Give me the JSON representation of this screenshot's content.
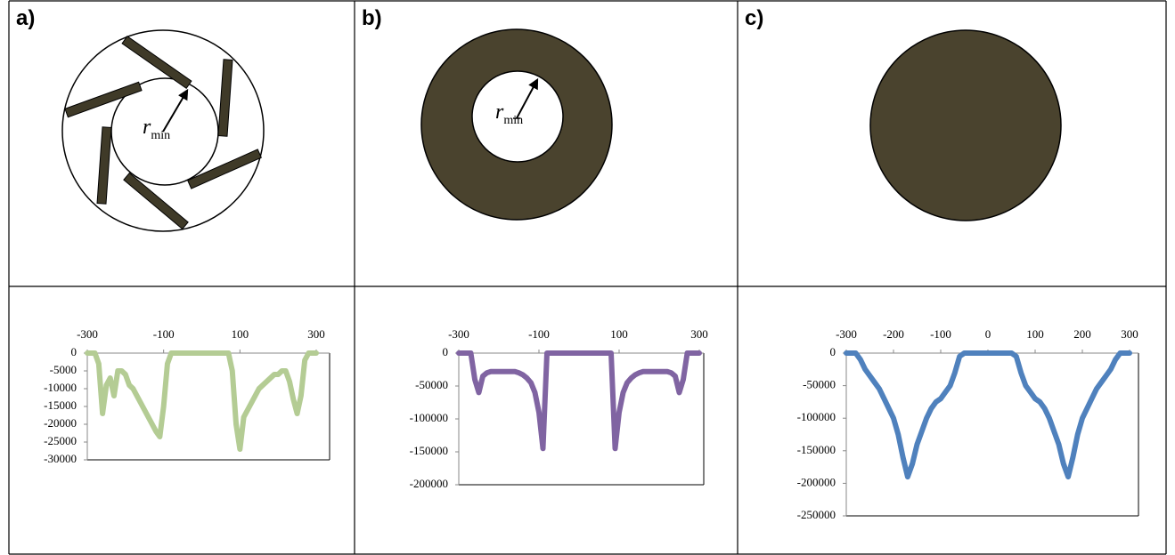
{
  "panels": [
    {
      "label": "a)",
      "annotation": {
        "symbol": "r",
        "subscript": "min"
      }
    },
    {
      "label": "b)",
      "annotation": {
        "symbol": "r",
        "subscript": "min"
      }
    },
    {
      "label": "c)"
    }
  ],
  "chart_data": [
    {
      "type": "line",
      "x": [
        -300,
        -290,
        -280,
        -270,
        -260,
        -250,
        -240,
        -230,
        -220,
        -210,
        -200,
        -190,
        -180,
        -170,
        -160,
        -150,
        -140,
        -130,
        -120,
        -110,
        -100,
        -90,
        -80,
        -70,
        -60,
        -50,
        -40,
        -30,
        -20,
        -10,
        0,
        10,
        20,
        30,
        40,
        50,
        60,
        70,
        80,
        90,
        100,
        110,
        120,
        130,
        140,
        150,
        160,
        170,
        180,
        190,
        200,
        210,
        220,
        230,
        240,
        250,
        260,
        270,
        280,
        290,
        300
      ],
      "series": [
        {
          "color": "#b4cc94",
          "values": [
            0,
            0,
            0,
            -3000,
            -17000,
            -9000,
            -7000,
            -12000,
            -5000,
            -5000,
            -6000,
            -9000,
            -10000,
            -12000,
            -14000,
            -16000,
            -18000,
            -20000,
            -22000,
            -23500,
            -15000,
            -3000,
            0,
            0,
            0,
            0,
            0,
            0,
            0,
            0,
            0,
            0,
            0,
            0,
            0,
            0,
            0,
            0,
            -5000,
            -20000,
            -27000,
            -18000,
            -16000,
            -14000,
            -12000,
            -10000,
            -9000,
            -8000,
            -7000,
            -6000,
            -6000,
            -5000,
            -5000,
            -8000,
            -13000,
            -17000,
            -12000,
            -2000,
            0,
            0,
            0
          ]
        }
      ],
      "xlim": [
        -300,
        300
      ],
      "xticks": [
        -300,
        -100,
        100,
        300
      ],
      "ylim": [
        -30000,
        0
      ],
      "yticks": [
        0,
        -5000,
        -10000,
        -15000,
        -20000,
        -25000,
        -30000
      ]
    },
    {
      "type": "line",
      "x": [
        -300,
        -290,
        -280,
        -270,
        -260,
        -250,
        -240,
        -230,
        -220,
        -210,
        -200,
        -190,
        -180,
        -170,
        -160,
        -150,
        -140,
        -130,
        -120,
        -110,
        -100,
        -90,
        -80,
        -70,
        -60,
        -50,
        -40,
        -30,
        -20,
        -10,
        0,
        10,
        20,
        30,
        40,
        50,
        60,
        70,
        80,
        90,
        100,
        110,
        120,
        130,
        140,
        150,
        160,
        170,
        180,
        190,
        200,
        210,
        220,
        230,
        240,
        250,
        260,
        270,
        280,
        290,
        300
      ],
      "series": [
        {
          "color": "#8064a2",
          "values": [
            0,
            0,
            0,
            0,
            -40000,
            -60000,
            -35000,
            -30000,
            -28000,
            -28000,
            -28000,
            -28000,
            -28000,
            -28000,
            -28000,
            -30000,
            -33000,
            -38000,
            -45000,
            -60000,
            -90000,
            -145000,
            0,
            0,
            0,
            0,
            0,
            0,
            0,
            0,
            0,
            0,
            0,
            0,
            0,
            0,
            0,
            0,
            0,
            -145000,
            -90000,
            -60000,
            -45000,
            -38000,
            -33000,
            -30000,
            -28000,
            -28000,
            -28000,
            -28000,
            -28000,
            -28000,
            -28000,
            -30000,
            -35000,
            -60000,
            -40000,
            0,
            0,
            0,
            0
          ]
        }
      ],
      "xlim": [
        -300,
        300
      ],
      "xticks": [
        -300,
        -100,
        100,
        300
      ],
      "ylim": [
        -200000,
        0
      ],
      "yticks": [
        0,
        -50000,
        -100000,
        -150000,
        -200000
      ]
    },
    {
      "type": "line",
      "x": [
        -300,
        -290,
        -280,
        -270,
        -260,
        -250,
        -240,
        -230,
        -220,
        -210,
        -200,
        -190,
        -180,
        -170,
        -160,
        -150,
        -140,
        -130,
        -120,
        -110,
        -100,
        -90,
        -80,
        -70,
        -60,
        -50,
        -40,
        -30,
        -20,
        -10,
        0,
        10,
        20,
        30,
        40,
        50,
        60,
        70,
        80,
        90,
        100,
        110,
        120,
        130,
        140,
        150,
        160,
        170,
        180,
        190,
        200,
        210,
        220,
        230,
        240,
        250,
        260,
        270,
        280,
        290,
        300
      ],
      "series": [
        {
          "color": "#4f81bd",
          "values": [
            0,
            0,
            0,
            -10000,
            -25000,
            -35000,
            -45000,
            -55000,
            -70000,
            -85000,
            -100000,
            -125000,
            -160000,
            -190000,
            -170000,
            -140000,
            -120000,
            -100000,
            -85000,
            -75000,
            -70000,
            -60000,
            -50000,
            -30000,
            -5000,
            0,
            0,
            0,
            0,
            0,
            0,
            0,
            0,
            0,
            0,
            0,
            -5000,
            -30000,
            -50000,
            -60000,
            -70000,
            -75000,
            -85000,
            -100000,
            -120000,
            -140000,
            -170000,
            -190000,
            -160000,
            -125000,
            -100000,
            -85000,
            -70000,
            -55000,
            -45000,
            -35000,
            -25000,
            -10000,
            0,
            0,
            0
          ]
        }
      ],
      "xlim": [
        -300,
        300
      ],
      "xticks": [
        -300,
        -200,
        -100,
        0,
        100,
        200,
        300
      ],
      "ylim": [
        -250000,
        0
      ],
      "yticks": [
        0,
        -50000,
        -100000,
        -150000,
        -200000,
        -250000
      ]
    }
  ]
}
